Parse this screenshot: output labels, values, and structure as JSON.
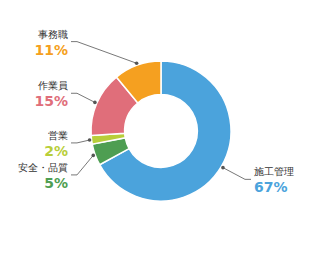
{
  "chart_data": {
    "type": "donut",
    "categories": [
      "施工管理",
      "安全・品質",
      "営業",
      "作業員",
      "事務職"
    ],
    "values": [
      67,
      5,
      2,
      15,
      11
    ],
    "value_labels": [
      "67%",
      "5%",
      "2%",
      "15%",
      "11%"
    ],
    "colors": [
      "#4BA3DC",
      "#4E9E52",
      "#B8CE3A",
      "#E06E7A",
      "#F5A020"
    ],
    "data_labels": true
  }
}
